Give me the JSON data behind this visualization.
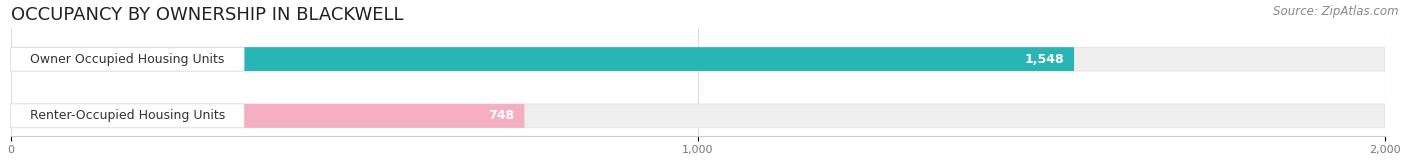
{
  "title": "OCCUPANCY BY OWNERSHIP IN BLACKWELL",
  "source_text": "Source: ZipAtlas.com",
  "categories": [
    "Owner Occupied Housing Units",
    "Renter-Occupied Housing Units"
  ],
  "values": [
    1548,
    748
  ],
  "bar_colors": [
    "#29b4b6",
    "#f5aec2"
  ],
  "value_labels": [
    "1,548",
    "748"
  ],
  "xlim": [
    0,
    2000
  ],
  "xticks": [
    0,
    1000,
    2000
  ],
  "xtick_labels": [
    "0",
    "1,000",
    "2,000"
  ],
  "title_fontsize": 13,
  "label_fontsize": 9,
  "value_fontsize": 9,
  "source_fontsize": 8.5,
  "bg_color": "#ffffff",
  "bar_bg_color": "#efefef",
  "bar_height": 0.42
}
